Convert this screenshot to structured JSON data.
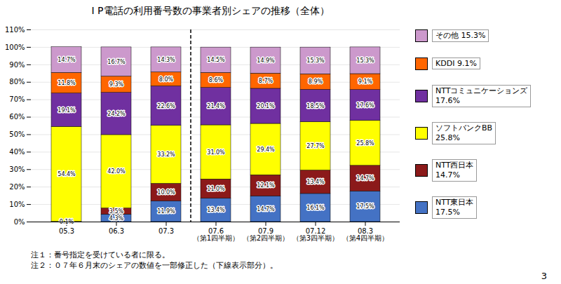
{
  "chart_data": {
    "type": "bar",
    "stacked": true,
    "title": "I P電話の利用番号数の事業者別シェアの推移（全体）",
    "categories": [
      "05.3",
      "06.3",
      "07.3",
      "07.6\n（第1四半期）",
      "07.9\n（第2四半期）",
      "07.12\n（第3四半期）",
      "08.3\n（第4四半期）"
    ],
    "series": [
      {
        "name": "NTT東日本\n17.5%",
        "color": "#4472C4",
        "values": [
          0.1,
          4.3,
          11.9,
          13.4,
          14.7,
          16.1,
          17.5
        ],
        "value_labels": [
          "0.1%",
          "4.3%",
          "11.9%",
          "13.4%",
          "14.7%",
          "16.1%",
          "17.5%"
        ]
      },
      {
        "name": "NTT西日本\n14.7%",
        "color": "#8B1A1A",
        "values": [
          0.0,
          3.5,
          10.0,
          11.0,
          12.1,
          13.4,
          14.7
        ],
        "value_labels": [
          null,
          "3.5%",
          "10.0%",
          "11.0%",
          "12.1%",
          "13.4%",
          "14.7%"
        ]
      },
      {
        "name": "ソフトバンクBB\n25.8%",
        "color": "#FFFF00",
        "values": [
          54.4,
          42.0,
          33.2,
          31.0,
          29.4,
          27.7,
          25.8
        ],
        "value_labels": [
          "54.4%",
          "42.0%",
          "33.2%",
          "31.0%",
          "29.4%",
          "27.7%",
          "25.8%"
        ]
      },
      {
        "name": "NTTコミュニケーションズ\n17.6%",
        "color": "#7030A0",
        "values": [
          19.1,
          24.2,
          22.6,
          21.4,
          20.1,
          18.5,
          17.6
        ],
        "value_labels": [
          "19.1%",
          "24.2%",
          "22.6%",
          "21.4%",
          "20.1%",
          "18.5%",
          "17.6%"
        ]
      },
      {
        "name": "KDDI 9.1%",
        "color": "#FF6600",
        "values": [
          11.8,
          9.3,
          8.0,
          8.6,
          8.7,
          8.9,
          9.1
        ],
        "value_labels": [
          "11.8%",
          "9.3%",
          "8.0%",
          "8.6%",
          "8.7%",
          "8.9%",
          "9.1%"
        ]
      },
      {
        "name": "その他 15.3%",
        "color": "#CC99CC",
        "values": [
          14.7,
          16.7,
          14.3,
          14.5,
          14.9,
          15.3,
          15.3
        ],
        "value_labels": [
          "14.7%",
          "16.7%",
          "14.3%",
          "14.5%",
          "14.9%",
          "15.3%",
          "15.3%"
        ]
      }
    ],
    "data_labels": true,
    "legend": "right",
    "grid": true,
    "ylim": [
      0,
      110
    ],
    "yticks": [
      {
        "value": 0,
        "label": "0%"
      },
      {
        "value": 10,
        "label": "10%"
      },
      {
        "value": 20,
        "label": "20%"
      },
      {
        "value": 30,
        "label": "30%"
      },
      {
        "value": 40,
        "label": "40%"
      },
      {
        "value": 50,
        "label": "50%"
      },
      {
        "value": 60,
        "label": "60%"
      },
      {
        "value": 70,
        "label": "70%"
      },
      {
        "value": 80,
        "label": "80%"
      },
      {
        "value": 90,
        "label": "90%"
      },
      {
        "value": 100,
        "label": "100%"
      },
      {
        "value": 110,
        "label": "110%"
      }
    ],
    "dividers": [
      {
        "after": "07.3",
        "line_style": "dashed"
      }
    ],
    "notes": [
      "注１：番号指定を受けている者に限る。",
      "注２：０７年６月末のシェアの数値を一部修正した（下線表示部分）。"
    ],
    "page_number": "3"
  }
}
